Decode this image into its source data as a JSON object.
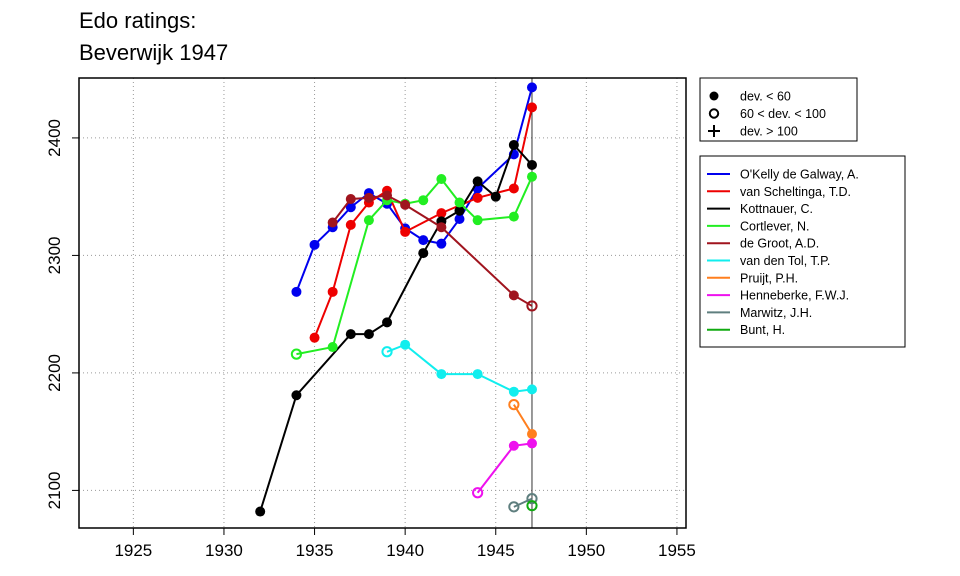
{
  "chart_data": {
    "type": "line",
    "title": [
      "Edo ratings:",
      "Beverwijk 1947"
    ],
    "xlim": [
      1922,
      1955.5
    ],
    "ylim": [
      2068,
      2451
    ],
    "x_ticks": [
      1925,
      1930,
      1935,
      1940,
      1945,
      1950,
      1955
    ],
    "y_ticks": [
      2100,
      2200,
      2300,
      2400
    ],
    "grid": "dotted",
    "vertical_line_x": 1947,
    "symbol_legend": [
      {
        "marker": "filled",
        "label": "dev. < 60"
      },
      {
        "marker": "open",
        "label": "60 < dev. < 100"
      },
      {
        "marker": "plus",
        "label": "dev. > 100"
      }
    ],
    "series": [
      {
        "name": "O'Kelly de Galway, A.",
        "color": "#0000ee",
        "points": [
          [
            1934,
            2269,
            "f"
          ],
          [
            1935,
            2309,
            "f"
          ],
          [
            1936,
            2324,
            "f"
          ],
          [
            1937,
            2341,
            "f"
          ],
          [
            1938,
            2353,
            "f"
          ],
          [
            1939,
            2344,
            "f"
          ],
          [
            1940,
            2323,
            "f"
          ],
          [
            1941,
            2313,
            "f"
          ],
          [
            1942,
            2310,
            "f"
          ],
          [
            1943,
            2331,
            "f"
          ],
          [
            1944,
            2357,
            "f"
          ],
          [
            1946,
            2386,
            "f"
          ],
          [
            1947,
            2443,
            "f"
          ]
        ]
      },
      {
        "name": "van Scheltinga, T.D.",
        "color": "#ee0000",
        "points": [
          [
            1935,
            2230,
            "f"
          ],
          [
            1936,
            2269,
            "f"
          ],
          [
            1937,
            2326,
            "f"
          ],
          [
            1938,
            2345,
            "f"
          ],
          [
            1939,
            2355,
            "f"
          ],
          [
            1940,
            2320,
            "f"
          ],
          [
            1942,
            2336,
            "f"
          ],
          [
            1944,
            2349,
            "f"
          ],
          [
            1946,
            2357,
            "f"
          ],
          [
            1947,
            2426,
            "f"
          ]
        ]
      },
      {
        "name": "Kottnauer, C.",
        "color": "#000000",
        "points": [
          [
            1932,
            2082,
            "f"
          ],
          [
            1934,
            2181,
            "f"
          ],
          [
            1937,
            2233,
            "f"
          ],
          [
            1938,
            2233,
            "f"
          ],
          [
            1939,
            2243,
            "f"
          ],
          [
            1941,
            2302,
            "f"
          ],
          [
            1942,
            2329,
            "f"
          ],
          [
            1943,
            2338,
            "f"
          ],
          [
            1944,
            2363,
            "f"
          ],
          [
            1945,
            2350,
            "f"
          ],
          [
            1946,
            2394,
            "f"
          ],
          [
            1947,
            2377,
            "f"
          ]
        ]
      },
      {
        "name": "Cortlever, N.",
        "color": "#22ee22",
        "points": [
          [
            1934,
            2216,
            "o"
          ],
          [
            1936,
            2222,
            "f"
          ],
          [
            1938,
            2330,
            "f"
          ],
          [
            1939,
            2347,
            "f"
          ],
          [
            1940,
            2344,
            "f"
          ],
          [
            1941,
            2347,
            "f"
          ],
          [
            1942,
            2365,
            "f"
          ],
          [
            1943,
            2345,
            "f"
          ],
          [
            1944,
            2330,
            "f"
          ],
          [
            1946,
            2333,
            "f"
          ],
          [
            1947,
            2367,
            "f"
          ]
        ]
      },
      {
        "name": "de Groot, A.D.",
        "color": "#a0141e",
        "points": [
          [
            1936,
            2328,
            "f"
          ],
          [
            1937,
            2348,
            "f"
          ],
          [
            1938,
            2349,
            "f"
          ],
          [
            1939,
            2351,
            "f"
          ],
          [
            1940,
            2343,
            "f"
          ],
          [
            1942,
            2324,
            "f"
          ],
          [
            1946,
            2266,
            "f"
          ],
          [
            1947,
            2257,
            "o"
          ]
        ]
      },
      {
        "name": "van den Tol, T.P.",
        "color": "#11eeee",
        "points": [
          [
            1939,
            2218,
            "o"
          ],
          [
            1940,
            2224,
            "f"
          ],
          [
            1942,
            2199,
            "f"
          ],
          [
            1944,
            2199,
            "f"
          ],
          [
            1946,
            2184,
            "f"
          ],
          [
            1947,
            2186,
            "f"
          ]
        ]
      },
      {
        "name": "Pruijt, P.H.",
        "color": "#ff7f1e",
        "points": [
          [
            1946,
            2173,
            "o"
          ],
          [
            1947,
            2148,
            "f"
          ]
        ]
      },
      {
        "name": "Henneberke, F.W.J.",
        "color": "#ee11ee",
        "points": [
          [
            1944,
            2098,
            "o"
          ],
          [
            1946,
            2138,
            "f"
          ],
          [
            1947,
            2140,
            "f"
          ]
        ]
      },
      {
        "name": "Marwitz, J.H.",
        "color": "#5f7f7f",
        "points": [
          [
            1946,
            2086,
            "o"
          ],
          [
            1947,
            2093,
            "o"
          ]
        ]
      },
      {
        "name": "Bunt, H.",
        "color": "#11aa11",
        "points": [
          [
            1947,
            2087,
            "o"
          ]
        ]
      }
    ]
  }
}
